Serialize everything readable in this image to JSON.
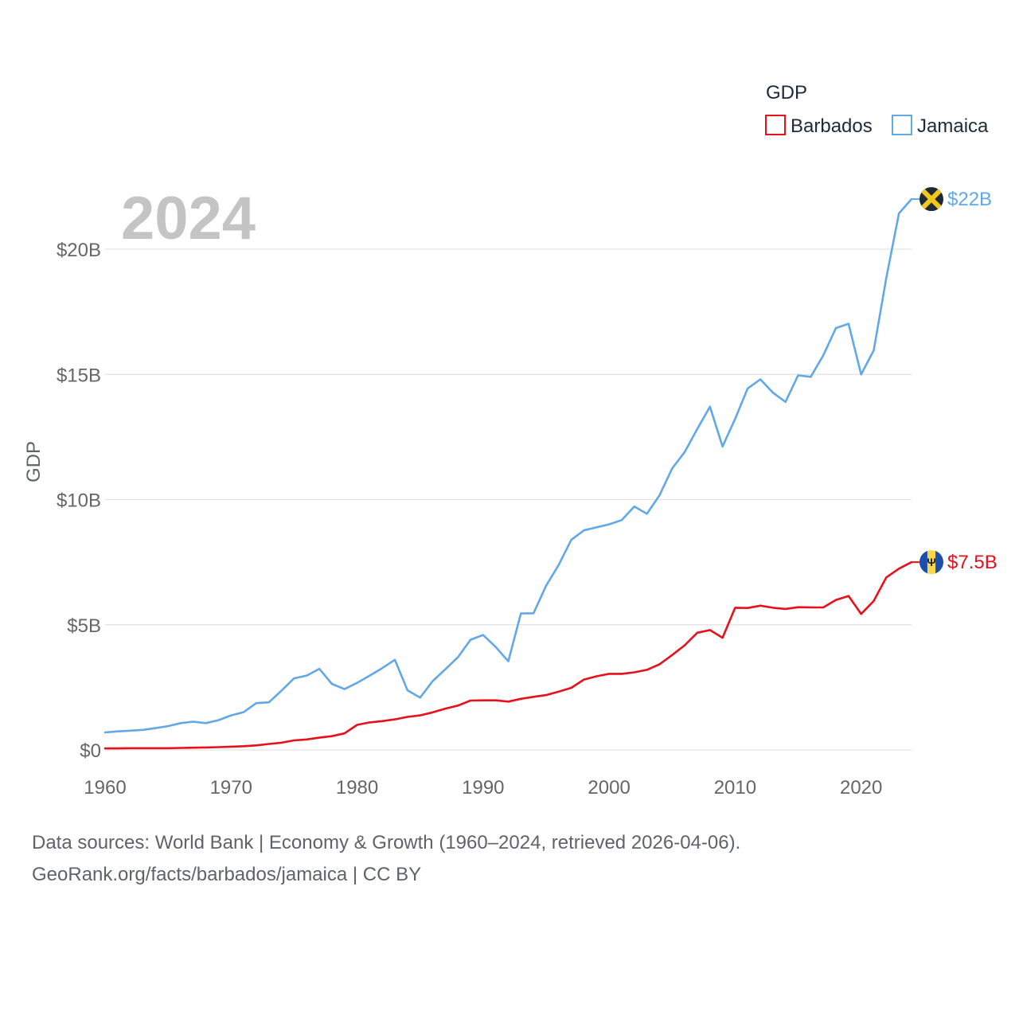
{
  "chart_data": {
    "type": "line",
    "metric": "GDP",
    "legend_title": "GDP",
    "ylabel": "GDP",
    "year_label": "2024",
    "x": [
      1960,
      1961,
      1962,
      1963,
      1964,
      1965,
      1966,
      1967,
      1968,
      1969,
      1970,
      1971,
      1972,
      1973,
      1974,
      1975,
      1976,
      1977,
      1978,
      1979,
      1980,
      1981,
      1982,
      1983,
      1984,
      1985,
      1986,
      1987,
      1988,
      1989,
      1990,
      1991,
      1992,
      1993,
      1994,
      1995,
      1996,
      1997,
      1998,
      1999,
      2000,
      2001,
      2002,
      2003,
      2004,
      2005,
      2006,
      2007,
      2008,
      2009,
      2010,
      2011,
      2012,
      2013,
      2014,
      2015,
      2016,
      2017,
      2018,
      2019,
      2020,
      2021,
      2022,
      2023,
      2024
    ],
    "xlim": [
      1960,
      2024
    ],
    "xticks": [
      1960,
      1970,
      1980,
      1990,
      2000,
      2010,
      2020
    ],
    "xtick_labels": [
      "1960",
      "1970",
      "1980",
      "1990",
      "2000",
      "2010",
      "2020"
    ],
    "ylim": [
      0,
      20
    ],
    "yunit": "billion USD",
    "yticks": [
      0,
      5,
      10,
      15,
      20
    ],
    "ytick_labels": [
      "$0",
      "$5B",
      "$10B",
      "$15B",
      "$20B"
    ],
    "series": [
      {
        "name": "Barbados",
        "color": "#e8101a",
        "end_label": "$7.5B",
        "flag_icon": "barbados-flag-icon",
        "values": [
          0.06,
          0.06,
          0.07,
          0.07,
          0.07,
          0.07,
          0.08,
          0.09,
          0.1,
          0.11,
          0.13,
          0.15,
          0.18,
          0.24,
          0.29,
          0.38,
          0.42,
          0.49,
          0.55,
          0.66,
          1.0,
          1.1,
          1.15,
          1.22,
          1.32,
          1.38,
          1.5,
          1.65,
          1.77,
          1.97,
          1.98,
          1.98,
          1.93,
          2.04,
          2.12,
          2.19,
          2.33,
          2.48,
          2.81,
          2.94,
          3.04,
          3.04,
          3.1,
          3.2,
          3.42,
          3.79,
          4.18,
          4.68,
          4.79,
          4.48,
          5.68,
          5.67,
          5.76,
          5.68,
          5.63,
          5.7,
          5.69,
          5.69,
          5.99,
          6.15,
          5.43,
          5.95,
          6.89,
          7.24,
          7.5
        ]
      },
      {
        "name": "Jamaica",
        "color": "#62a8e6",
        "end_label": "$22B",
        "flag_icon": "jamaica-flag-icon",
        "values": [
          0.7,
          0.74,
          0.77,
          0.8,
          0.87,
          0.95,
          1.07,
          1.13,
          1.07,
          1.19,
          1.38,
          1.51,
          1.87,
          1.9,
          2.37,
          2.86,
          2.97,
          3.24,
          2.64,
          2.43,
          2.68,
          2.97,
          3.27,
          3.6,
          2.38,
          2.09,
          2.75,
          3.22,
          3.7,
          4.4,
          4.59,
          4.11,
          3.54,
          5.45,
          5.46,
          6.56,
          7.39,
          8.39,
          8.77,
          8.89,
          9.01,
          9.18,
          9.72,
          9.43,
          10.17,
          11.24,
          11.9,
          12.82,
          13.71,
          12.12,
          13.22,
          14.44,
          14.8,
          14.27,
          13.9,
          14.96,
          14.9,
          15.76,
          16.85,
          17.02,
          15.0,
          15.96,
          18.85,
          21.43,
          22.0
        ]
      }
    ]
  },
  "source": {
    "line1": "Data sources: World Bank | Economy & Growth (1960–2024, retrieved 2026-04-06).",
    "line2": "GeoRank.org/facts/barbados/jamaica | CC BY"
  }
}
